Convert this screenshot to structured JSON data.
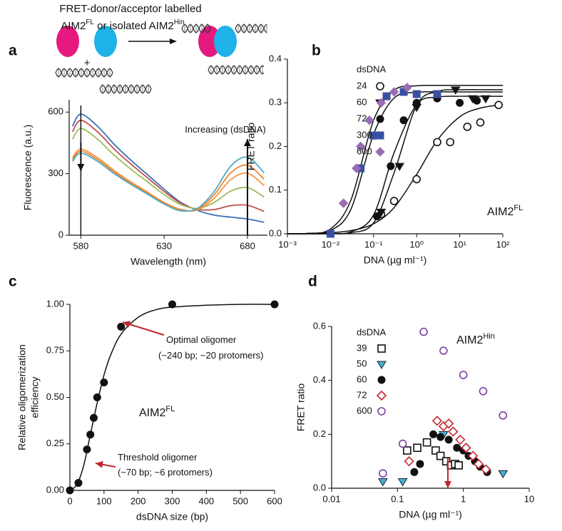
{
  "schematic": {
    "lines": [
      [
        {
          "text": "FRET-donor/acceptor labelled"
        }
      ],
      [
        {
          "text": "AIM2"
        },
        {
          "text": "FL",
          "sup": true
        },
        {
          "text": " or isolated AIM2"
        },
        {
          "text": "Hin",
          "sup": true
        }
      ]
    ],
    "plus": "+"
  },
  "chart_data": [
    {
      "type": "line",
      "panel_label": "a",
      "x": [
        575,
        580,
        590,
        600,
        610,
        620,
        630,
        640,
        650,
        660,
        670,
        680,
        690
      ],
      "series": [
        {
          "color": "#3b6fb6",
          "values": [
            531,
            590,
            531,
            443,
            366,
            295,
            224,
            160,
            121,
            98,
            88,
            79,
            63
          ]
        },
        {
          "color": "#c0504d",
          "values": [
            504,
            560,
            504,
            420,
            347,
            280,
            213,
            156,
            126,
            125,
            144,
            146,
            116
          ]
        },
        {
          "color": "#9bbb59",
          "values": [
            468,
            520,
            468,
            390,
            322,
            260,
            198,
            149,
            131,
            159,
            215,
            232,
            186
          ]
        },
        {
          "color": "#f79646",
          "values": [
            378,
            420,
            378,
            315,
            260,
            210,
            160,
            126,
            123,
            180,
            271,
            302,
            242
          ]
        },
        {
          "color": "#e8883a",
          "values": [
            369,
            410,
            369,
            308,
            254,
            205,
            156,
            123,
            127,
            197,
            304,
            341,
            273
          ]
        },
        {
          "color": "#4bacc6",
          "values": [
            360,
            400,
            360,
            300,
            248,
            200,
            152,
            119,
            131,
            213,
            337,
            380,
            304
          ]
        }
      ],
      "xlim": [
        573,
        692
      ],
      "xticks": [
        580,
        630,
        680
      ],
      "ylim": [
        0,
        660
      ],
      "yticks": [
        0,
        300,
        600
      ],
      "x_label": "Wavelength (nm)",
      "y_label": [
        "Fluorescence (a.u.)"
      ],
      "annotations": [
        {
          "text": "Increasing (dsDNA)"
        }
      ]
    },
    {
      "type": "scatter",
      "panel_label": "b",
      "log_x": true,
      "xlim": [
        0.001,
        100
      ],
      "xticks": [
        {
          "value": 0.001,
          "label": "10⁻³"
        },
        {
          "value": 0.01,
          "label": "10⁻²"
        },
        {
          "value": 0.1,
          "label": "10⁻¹"
        },
        {
          "value": 1,
          "label": "10⁰"
        },
        {
          "value": 10,
          "label": "10¹"
        },
        {
          "value": 100,
          "label": "10²"
        }
      ],
      "ylim": [
        0,
        0.4
      ],
      "yticks": [
        {
          "value": 0,
          "label": "0.0"
        },
        0.1,
        0.2,
        0.3,
        0.4
      ],
      "x_label": "DNA (µg ml⁻¹)",
      "y_label": [
        "FRET ratio"
      ],
      "legend_title": "dsDNA",
      "fit_x": [
        0.001,
        0.003,
        0.01,
        0.03,
        0.1,
        0.3,
        1,
        3,
        10,
        30,
        100
      ],
      "series": [
        {
          "name": "24",
          "color": "#111111",
          "marker": "open-circle",
          "x": [
            0.15,
            0.3,
            1,
            3,
            6,
            15,
            30,
            80
          ],
          "values": [
            0.045,
            0.075,
            0.125,
            0.21,
            0.21,
            0.245,
            0.255,
            0.295
          ],
          "fit": [
            0.0002,
            0.0007,
            0.0025,
            0.0073,
            0.023,
            0.06,
            0.136,
            0.214,
            0.268,
            0.288,
            0.296
          ]
        },
        {
          "name": "60",
          "color": "#111111",
          "marker": "triangle-down",
          "x": [
            0.15,
            0.4,
            1,
            3,
            8,
            20,
            40
          ],
          "values": [
            0.05,
            0.155,
            0.29,
            0.32,
            0.33,
            0.31,
            0.31
          ],
          "fit": [
            0,
            0,
            0.0003,
            0.0024,
            0.025,
            0.14,
            0.294,
            0.326,
            0.33,
            0.33,
            0.33
          ]
        },
        {
          "name": "72",
          "color": "#111111",
          "marker": "circle",
          "x": [
            0.12,
            0.25,
            0.5,
            1,
            3,
            10,
            25
          ],
          "values": [
            0.04,
            0.155,
            0.26,
            0.3,
            0.31,
            0.3,
            0.305
          ],
          "fit": [
            0,
            0,
            0.0005,
            0.0045,
            0.043,
            0.186,
            0.296,
            0.313,
            0.315,
            0.315,
            0.315
          ]
        },
        {
          "name": "300",
          "color": "#3a4fa3",
          "marker": "square",
          "x": [
            0.01,
            0.05,
            0.1,
            0.2,
            0.5,
            1,
            3
          ],
          "values": [
            0,
            0.15,
            0.225,
            0.315,
            0.325,
            0.32,
            0.32
          ],
          "fit": [
            0.0001,
            0.0007,
            0.0075,
            0.057,
            0.228,
            0.311,
            0.324,
            0.325,
            0.325,
            0.325,
            0.325
          ]
        },
        {
          "name": "600",
          "color": "#9b6bb5",
          "marker": "diamond",
          "x": [
            0.02,
            0.04,
            0.05,
            0.08,
            0.15,
            0.3,
            0.6
          ],
          "values": [
            0.07,
            0.15,
            0.2,
            0.26,
            0.3,
            0.325,
            0.335
          ],
          "fit": [
            0.0001,
            0.001,
            0.011,
            0.078,
            0.26,
            0.329,
            0.339,
            0.34,
            0.34,
            0.34,
            0.34
          ]
        }
      ],
      "annotations": [
        {
          "text": "AIM2",
          "sup": "FL"
        }
      ]
    },
    {
      "type": "scatter",
      "panel_label": "c",
      "xlim": [
        0,
        600
      ],
      "xticks": [
        0,
        100,
        200,
        300,
        400,
        500,
        600
      ],
      "ylim": [
        0,
        1
      ],
      "yticks": [
        {
          "value": 0,
          "label": "0.00"
        },
        0.25,
        {
          "value": 0.5,
          "label": "0.50"
        },
        0.75,
        {
          "value": 1,
          "label": "1.00"
        }
      ],
      "x_label": "dsDNA size (bp)",
      "y_label": [
        "Relative oligomerization",
        "efficiency"
      ],
      "fit_x": [
        0,
        20,
        40,
        60,
        80,
        100,
        120,
        150,
        200,
        250,
        300,
        400,
        500,
        600
      ],
      "series": [
        {
          "color": "#111111",
          "marker": "circle",
          "x": [
            0,
            25,
            50,
            60,
            70,
            80,
            100,
            150,
            300,
            600
          ],
          "values": [
            0,
            0.04,
            0.22,
            0.3,
            0.39,
            0.5,
            0.58,
            0.88,
            1,
            1
          ],
          "fit": [
            0,
            0.03,
            0.13,
            0.3,
            0.47,
            0.62,
            0.73,
            0.84,
            0.93,
            0.97,
            0.985,
            0.995,
            1,
            1
          ]
        }
      ],
      "annotations": [
        {
          "text": "Optimal oligomer"
        },
        {
          "text": "(~240 bp; ~20 protomers)"
        },
        {
          "text": "AIM2",
          "sup": "FL"
        },
        {
          "text": "Threshold oligomer"
        },
        {
          "text": "(~70 bp; ~6 protomers)"
        }
      ]
    },
    {
      "type": "scatter",
      "panel_label": "d",
      "log_x": true,
      "xlim": [
        0.01,
        10
      ],
      "xticks": [
        0.01,
        0.1,
        1,
        10
      ],
      "ylim": [
        0,
        0.6
      ],
      "yticks": [
        {
          "value": 0,
          "label": "0.0"
        },
        0.2,
        0.4,
        0.6
      ],
      "x_label": "DNA (µg ml⁻¹)",
      "y_label": [
        "FRET ratio"
      ],
      "legend_title": "dsDNA",
      "series": [
        {
          "name": "39",
          "color": "#111111",
          "marker": "open-square",
          "x": [
            0.14,
            0.2,
            0.28,
            0.38,
            0.45,
            0.55,
            0.65,
            0.75,
            0.85
          ],
          "values": [
            0.14,
            0.15,
            0.17,
            0.14,
            0.12,
            0.1,
            0.085,
            0.09,
            0.085
          ]
        },
        {
          "name": "50",
          "color": "#3cb4d8",
          "marker": "triangle-down",
          "x": [
            0.06,
            0.12,
            0.5,
            4
          ],
          "values": [
            0.025,
            0.025,
            0.2,
            0.055
          ]
        },
        {
          "name": "60",
          "color": "#111111",
          "marker": "circle",
          "x": [
            0.18,
            0.22,
            0.35,
            0.45,
            0.6,
            0.8,
            1,
            1.2,
            1.5,
            1.8,
            2.3
          ],
          "values": [
            0.06,
            0.09,
            0.2,
            0.19,
            0.18,
            0.15,
            0.14,
            0.12,
            0.1,
            0.08,
            0.06
          ]
        },
        {
          "name": "72",
          "color": "#c0272d",
          "marker": "open-diamond",
          "x": [
            0.15,
            0.4,
            0.5,
            0.6,
            0.7,
            0.9,
            1.1,
            1.4,
            1.7,
            2.2
          ],
          "values": [
            0.1,
            0.25,
            0.23,
            0.24,
            0.21,
            0.18,
            0.15,
            0.12,
            0.09,
            0.07
          ]
        },
        {
          "name": "600",
          "color": "#7b3fa0",
          "marker": "open-circle",
          "x": [
            0.06,
            0.12,
            0.25,
            0.5,
            1,
            2,
            4
          ],
          "values": [
            0.055,
            0.165,
            0.58,
            0.51,
            0.42,
            0.36,
            0.27
          ]
        }
      ],
      "annotations": [
        {
          "text": "AIM2",
          "sup": "Hin"
        }
      ]
    }
  ]
}
